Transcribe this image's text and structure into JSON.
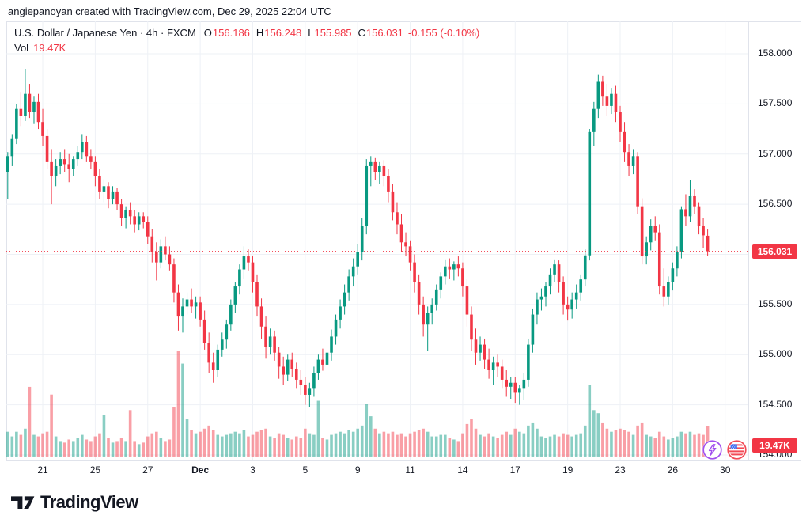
{
  "attribution": "angiepanoyan created with TradingView.com, Dec 29, 2025 22:04 UTC",
  "legend": {
    "title": "U.S. Dollar / Japanese Yen · 4h · FXCM",
    "o_label": "O",
    "o": "156.186",
    "h_label": "H",
    "h": "156.248",
    "l_label": "L",
    "l": "155.985",
    "c_label": "C",
    "c": "156.031",
    "change": "-0.155 (-0.10%)",
    "vol_label": "Vol",
    "vol_value": "19.47K"
  },
  "price_scale": {
    "labels": [
      {
        "text": "158.000",
        "price": 158.0
      },
      {
        "text": "157.500",
        "price": 157.5
      },
      {
        "text": "157.000",
        "price": 157.0
      },
      {
        "text": "156.500",
        "price": 156.5
      },
      {
        "text": "155.500",
        "price": 155.5
      },
      {
        "text": "155.000",
        "price": 155.0
      },
      {
        "text": "154.500",
        "price": 154.5
      },
      {
        "text": "154.000",
        "price": 154.0
      }
    ],
    "current_price_badge": "156.031",
    "volume_badge": "19.47K"
  },
  "time_scale": {
    "ticks": [
      {
        "label": "21",
        "bar": 8
      },
      {
        "label": "25",
        "bar": 20
      },
      {
        "label": "27",
        "bar": 32
      },
      {
        "label": "Dec",
        "bar": 44,
        "bold": true
      },
      {
        "label": "3",
        "bar": 56
      },
      {
        "label": "5",
        "bar": 68
      },
      {
        "label": "9",
        "bar": 80
      },
      {
        "label": "11",
        "bar": 92
      },
      {
        "label": "14",
        "bar": 104
      },
      {
        "label": "17",
        "bar": 116
      },
      {
        "label": "19",
        "bar": 128
      },
      {
        "label": "23",
        "bar": 140
      },
      {
        "label": "26",
        "bar": 152
      },
      {
        "label": "30",
        "bar": 164
      }
    ]
  },
  "logo": {
    "text": "TradingView"
  },
  "icons": {
    "lightning": "lightning-bolt",
    "flag": "us-economic-calendar"
  },
  "colors": {
    "up": "#089981",
    "down": "#F23645",
    "vol_up": "rgba(8,153,129,0.48)",
    "vol_down": "rgba(242,54,69,0.48)",
    "accent_red": "#F23645",
    "purple": "#A250EE",
    "grid": "#EEF1F6",
    "border": "#E0E3EB",
    "text": "#131722"
  },
  "chart_data": {
    "type": "candlestick",
    "title": "U.S. Dollar / Japanese Yen",
    "symbol": "USD/JPY",
    "interval": "4h",
    "exchange": "FXCM",
    "price_axis": {
      "min": 154.0,
      "max": 158.0,
      "step": 0.5
    },
    "time_axis_labels": [
      "21",
      "25",
      "27",
      "Dec",
      "3",
      "5",
      "9",
      "11",
      "14",
      "17",
      "19",
      "23",
      "26",
      "30"
    ],
    "current_price": 156.031,
    "current_change": -0.155,
    "current_change_pct": "-0.10%",
    "current_volume_k": 19.47,
    "volume_scale_max_k": 70,
    "grid": true,
    "bars_format": [
      "open",
      "high",
      "low",
      "close",
      "volume_k"
    ],
    "bars": [
      [
        156.82,
        157.02,
        156.55,
        156.98,
        16
      ],
      [
        156.98,
        157.2,
        156.88,
        157.15,
        13
      ],
      [
        157.15,
        157.5,
        157.1,
        157.45,
        16
      ],
      [
        157.45,
        157.62,
        157.28,
        157.38,
        14
      ],
      [
        157.38,
        157.85,
        157.33,
        157.6,
        18
      ],
      [
        157.6,
        157.7,
        157.36,
        157.42,
        45
      ],
      [
        157.42,
        157.58,
        157.3,
        157.52,
        14
      ],
      [
        157.52,
        157.6,
        157.25,
        157.32,
        13
      ],
      [
        157.32,
        157.45,
        157.08,
        157.18,
        15
      ],
      [
        157.18,
        157.25,
        156.85,
        156.92,
        16
      ],
      [
        156.92,
        157.05,
        156.5,
        156.78,
        40
      ],
      [
        156.78,
        156.95,
        156.68,
        156.88,
        13
      ],
      [
        156.88,
        157.02,
        156.8,
        156.95,
        10
      ],
      [
        156.95,
        157.05,
        156.82,
        156.9,
        9
      ],
      [
        156.9,
        157.0,
        156.72,
        156.85,
        11
      ],
      [
        156.85,
        156.98,
        156.78,
        156.95,
        10
      ],
      [
        156.95,
        157.08,
        156.88,
        157.02,
        12
      ],
      [
        157.02,
        157.2,
        156.95,
        157.12,
        14
      ],
      [
        157.12,
        157.18,
        156.92,
        156.98,
        11
      ],
      [
        156.98,
        157.05,
        156.85,
        156.92,
        10
      ],
      [
        156.92,
        156.98,
        156.68,
        156.78,
        13
      ],
      [
        156.78,
        156.85,
        156.55,
        156.62,
        15
      ],
      [
        156.62,
        156.75,
        156.52,
        156.68,
        27
      ],
      [
        156.68,
        156.72,
        156.46,
        156.55,
        12
      ],
      [
        156.55,
        156.68,
        156.5,
        156.62,
        9
      ],
      [
        156.62,
        156.66,
        156.44,
        156.5,
        10
      ],
      [
        156.5,
        156.55,
        156.28,
        156.36,
        12
      ],
      [
        156.36,
        156.48,
        156.26,
        156.44,
        10
      ],
      [
        156.44,
        156.52,
        156.3,
        156.38,
        30
      ],
      [
        156.38,
        156.44,
        156.22,
        156.3,
        10
      ],
      [
        156.3,
        156.42,
        156.24,
        156.38,
        8
      ],
      [
        156.38,
        156.42,
        156.26,
        156.32,
        9
      ],
      [
        156.32,
        156.38,
        156.1,
        156.18,
        13
      ],
      [
        156.18,
        156.25,
        155.92,
        156.02,
        15
      ],
      [
        156.02,
        156.12,
        155.74,
        155.92,
        16
      ],
      [
        155.92,
        156.15,
        155.86,
        156.08,
        12
      ],
      [
        156.08,
        156.18,
        155.94,
        156.0,
        10
      ],
      [
        156.0,
        156.08,
        155.84,
        155.9,
        11
      ],
      [
        155.9,
        155.96,
        155.52,
        155.62,
        32
      ],
      [
        155.62,
        155.7,
        155.24,
        155.38,
        68
      ],
      [
        155.38,
        155.56,
        155.22,
        155.48,
        60
      ],
      [
        155.48,
        155.62,
        155.4,
        155.55,
        24
      ],
      [
        155.55,
        155.66,
        155.42,
        155.48,
        17
      ],
      [
        155.48,
        155.58,
        155.36,
        155.52,
        15
      ],
      [
        155.52,
        155.58,
        155.28,
        155.35,
        16
      ],
      [
        155.35,
        155.44,
        155.05,
        155.12,
        18
      ],
      [
        155.12,
        155.22,
        154.82,
        154.92,
        20
      ],
      [
        154.92,
        155.02,
        154.72,
        154.85,
        17
      ],
      [
        154.85,
        155.1,
        154.78,
        155.05,
        14
      ],
      [
        155.05,
        155.22,
        154.98,
        155.15,
        13
      ],
      [
        155.15,
        155.35,
        155.06,
        155.3,
        14
      ],
      [
        155.3,
        155.55,
        155.24,
        155.5,
        15
      ],
      [
        155.5,
        155.72,
        155.42,
        155.68,
        16
      ],
      [
        155.68,
        155.9,
        155.6,
        155.85,
        15
      ],
      [
        155.85,
        156.08,
        155.76,
        155.98,
        17
      ],
      [
        155.98,
        156.05,
        155.84,
        155.92,
        13
      ],
      [
        155.92,
        155.98,
        155.62,
        155.72,
        14
      ],
      [
        155.72,
        155.8,
        155.38,
        155.48,
        16
      ],
      [
        155.48,
        155.56,
        155.16,
        155.28,
        17
      ],
      [
        155.28,
        155.38,
        154.96,
        155.08,
        18
      ],
      [
        155.08,
        155.26,
        155.0,
        155.18,
        13
      ],
      [
        155.18,
        155.24,
        154.94,
        155.02,
        12
      ],
      [
        155.02,
        155.08,
        154.76,
        154.88,
        15
      ],
      [
        154.88,
        154.98,
        154.7,
        154.8,
        14
      ],
      [
        154.8,
        155.0,
        154.74,
        154.95,
        12
      ],
      [
        154.95,
        155.02,
        154.78,
        154.86,
        11
      ],
      [
        154.86,
        154.92,
        154.66,
        154.75,
        13
      ],
      [
        154.75,
        154.85,
        154.6,
        154.7,
        12
      ],
      [
        154.7,
        154.78,
        154.5,
        154.6,
        18
      ],
      [
        154.6,
        154.72,
        154.48,
        154.66,
        15
      ],
      [
        154.66,
        154.88,
        154.58,
        154.82,
        14
      ],
      [
        154.82,
        155.0,
        154.75,
        154.95,
        36
      ],
      [
        154.95,
        155.06,
        154.84,
        154.9,
        12
      ],
      [
        154.9,
        155.08,
        154.82,
        155.02,
        11
      ],
      [
        155.02,
        155.25,
        154.94,
        155.18,
        14
      ],
      [
        155.18,
        155.4,
        155.1,
        155.35,
        15
      ],
      [
        155.35,
        155.55,
        155.26,
        155.48,
        16
      ],
      [
        155.48,
        155.7,
        155.4,
        155.62,
        15
      ],
      [
        155.62,
        155.85,
        155.54,
        155.78,
        17
      ],
      [
        155.78,
        155.96,
        155.68,
        155.88,
        16
      ],
      [
        155.88,
        156.1,
        155.8,
        156.02,
        18
      ],
      [
        156.02,
        156.36,
        155.94,
        156.28,
        20
      ],
      [
        156.28,
        156.95,
        156.2,
        156.88,
        34
      ],
      [
        156.88,
        156.98,
        156.68,
        156.92,
        26
      ],
      [
        156.92,
        156.96,
        156.74,
        156.82,
        18
      ],
      [
        156.82,
        156.92,
        156.7,
        156.88,
        15
      ],
      [
        156.88,
        156.94,
        156.68,
        156.78,
        16
      ],
      [
        156.78,
        156.85,
        156.52,
        156.62,
        15
      ],
      [
        156.62,
        156.7,
        156.34,
        156.42,
        16
      ],
      [
        156.42,
        156.52,
        156.2,
        156.3,
        14
      ],
      [
        156.3,
        156.4,
        156.02,
        156.12,
        15
      ],
      [
        156.12,
        156.22,
        155.98,
        156.08,
        13
      ],
      [
        156.08,
        156.14,
        155.84,
        155.92,
        15
      ],
      [
        155.92,
        156.0,
        155.62,
        155.72,
        16
      ],
      [
        155.72,
        155.8,
        155.4,
        155.5,
        17
      ],
      [
        155.5,
        155.58,
        155.18,
        155.3,
        18
      ],
      [
        155.3,
        155.48,
        155.04,
        155.42,
        16
      ],
      [
        155.42,
        155.56,
        155.3,
        155.5,
        13
      ],
      [
        155.5,
        155.7,
        155.44,
        155.65,
        13
      ],
      [
        155.65,
        155.82,
        155.56,
        155.78,
        14
      ],
      [
        155.78,
        155.95,
        155.7,
        155.88,
        14
      ],
      [
        155.88,
        155.96,
        155.76,
        155.85,
        12
      ],
      [
        155.85,
        155.93,
        155.74,
        155.9,
        11
      ],
      [
        155.9,
        155.98,
        155.78,
        155.86,
        10
      ],
      [
        155.86,
        155.92,
        155.58,
        155.68,
        15
      ],
      [
        155.68,
        155.76,
        155.28,
        155.4,
        21
      ],
      [
        155.4,
        155.48,
        155.04,
        155.15,
        24
      ],
      [
        155.15,
        155.26,
        154.9,
        155.02,
        18
      ],
      [
        155.02,
        155.18,
        154.94,
        155.1,
        14
      ],
      [
        155.1,
        155.16,
        154.86,
        154.95,
        13
      ],
      [
        154.95,
        155.06,
        154.76,
        154.85,
        15
      ],
      [
        154.85,
        154.98,
        154.7,
        154.92,
        13
      ],
      [
        154.92,
        155.0,
        154.78,
        154.88,
        12
      ],
      [
        154.88,
        154.95,
        154.66,
        154.75,
        14
      ],
      [
        154.75,
        154.85,
        154.58,
        154.68,
        16
      ],
      [
        154.68,
        154.78,
        154.56,
        154.72,
        14
      ],
      [
        154.72,
        154.78,
        154.52,
        154.62,
        18
      ],
      [
        154.62,
        154.7,
        154.5,
        154.66,
        16
      ],
      [
        154.66,
        154.82,
        154.55,
        154.75,
        15
      ],
      [
        154.75,
        155.16,
        154.68,
        155.1,
        20
      ],
      [
        155.1,
        155.46,
        155.02,
        155.4,
        22
      ],
      [
        155.4,
        155.62,
        155.3,
        155.55,
        18
      ],
      [
        155.55,
        155.66,
        155.44,
        155.58,
        13
      ],
      [
        155.58,
        155.72,
        155.48,
        155.68,
        12
      ],
      [
        155.68,
        155.86,
        155.6,
        155.8,
        13
      ],
      [
        155.8,
        155.95,
        155.72,
        155.9,
        14
      ],
      [
        155.9,
        155.94,
        155.62,
        155.72,
        13
      ],
      [
        155.72,
        155.78,
        155.4,
        155.5,
        15
      ],
      [
        155.5,
        155.58,
        155.34,
        155.45,
        14
      ],
      [
        155.45,
        155.62,
        155.36,
        155.55,
        13
      ],
      [
        155.55,
        155.7,
        155.46,
        155.62,
        14
      ],
      [
        155.62,
        155.8,
        155.54,
        155.75,
        15
      ],
      [
        155.75,
        156.05,
        155.68,
        155.99,
        20
      ],
      [
        155.99,
        157.25,
        155.94,
        157.22,
        46
      ],
      [
        157.22,
        157.52,
        157.08,
        157.45,
        30
      ],
      [
        157.45,
        157.79,
        157.36,
        157.72,
        28
      ],
      [
        157.72,
        157.78,
        157.48,
        157.58,
        22
      ],
      [
        157.58,
        157.7,
        157.38,
        157.48,
        18
      ],
      [
        157.48,
        157.66,
        157.4,
        157.6,
        16
      ],
      [
        157.6,
        157.68,
        157.32,
        157.42,
        17
      ],
      [
        157.42,
        157.48,
        157.12,
        157.22,
        18
      ],
      [
        157.22,
        157.32,
        156.92,
        157.02,
        17
      ],
      [
        157.02,
        157.1,
        156.78,
        156.88,
        16
      ],
      [
        156.88,
        157.05,
        156.8,
        156.98,
        14
      ],
      [
        156.98,
        157.02,
        156.4,
        156.48,
        20
      ],
      [
        156.48,
        156.56,
        155.9,
        155.98,
        22
      ],
      [
        155.98,
        156.18,
        155.9,
        156.12,
        14
      ],
      [
        156.12,
        156.35,
        156.04,
        156.28,
        13
      ],
      [
        156.28,
        156.38,
        156.14,
        156.22,
        12
      ],
      [
        156.22,
        156.3,
        155.6,
        155.68,
        16
      ],
      [
        155.68,
        155.86,
        155.48,
        155.58,
        13
      ],
      [
        155.58,
        155.78,
        155.5,
        155.72,
        11
      ],
      [
        155.72,
        155.92,
        155.64,
        155.86,
        12
      ],
      [
        155.86,
        156.08,
        155.78,
        156.02,
        13
      ],
      [
        156.02,
        156.48,
        155.96,
        156.45,
        16
      ],
      [
        156.45,
        156.6,
        156.28,
        156.38,
        15
      ],
      [
        156.38,
        156.74,
        156.32,
        156.58,
        16
      ],
      [
        156.58,
        156.65,
        156.4,
        156.48,
        14
      ],
      [
        156.48,
        156.52,
        156.2,
        156.28,
        15
      ],
      [
        156.28,
        156.36,
        156.06,
        156.19,
        14
      ],
      [
        156.186,
        156.248,
        155.985,
        156.031,
        19.47
      ]
    ]
  }
}
